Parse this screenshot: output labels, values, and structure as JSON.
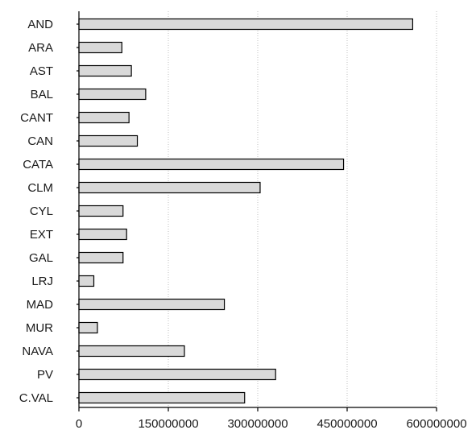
{
  "chart_data": {
    "type": "bar",
    "orientation": "horizontal",
    "categories": [
      "AND",
      "ARA",
      "AST",
      "BAL",
      "CANT",
      "CAN",
      "CATA",
      "CLM",
      "CYL",
      "EXT",
      "GAL",
      "LRJ",
      "MAD",
      "MUR",
      "NAVA",
      "PV",
      "C.VAL"
    ],
    "values": [
      560000000,
      72000000,
      88000000,
      112000000,
      84000000,
      98000000,
      444000000,
      304000000,
      74000000,
      80000000,
      74000000,
      25000000,
      244000000,
      31000000,
      177000000,
      330000000,
      278000000
    ],
    "xticks": [
      0,
      150000000,
      300000000,
      450000000,
      600000000
    ],
    "xtick_labels": [
      "0",
      "150000000",
      "300000000",
      "450000000",
      "600000000"
    ],
    "xlim": [
      0,
      600000000
    ],
    "grid": "vertical-dotted",
    "colors": {
      "bar_fill": "#d9d9d9",
      "bar_stroke": "#000000",
      "grid": "#bfbfbf"
    }
  }
}
